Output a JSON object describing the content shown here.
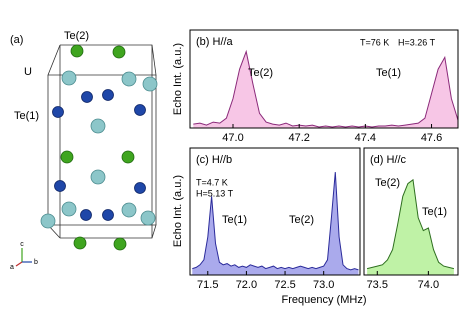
{
  "structure": {
    "label": "(a)",
    "atoms": [
      "Te(2)",
      "U",
      "Te(1)"
    ],
    "axes": [
      "c",
      "a",
      "b"
    ]
  },
  "chart_data": [
    {
      "type": "area",
      "title": "(b) H//a",
      "ylabel": "Echo Int. (a.u.)",
      "notes": [
        "T=76 K",
        "H=3.26 T"
      ],
      "annotations": [
        "Te(2)",
        "Te(1)"
      ],
      "color": "#8b2a7a",
      "fill": "#f7c6e6",
      "x": [
        46.88,
        46.9,
        46.92,
        46.94,
        46.96,
        46.98,
        47.0,
        47.02,
        47.04,
        47.06,
        47.08,
        47.1,
        47.12,
        47.14,
        47.16,
        47.18,
        47.2,
        47.22,
        47.24,
        47.26,
        47.28,
        47.3,
        47.32,
        47.34,
        47.36,
        47.38,
        47.4,
        47.42,
        47.44,
        47.46,
        47.48,
        47.5,
        47.52,
        47.54,
        47.56,
        47.58,
        47.6,
        47.62,
        47.64,
        47.66,
        47.68
      ],
      "values": [
        0.04,
        0.05,
        0.03,
        0.06,
        0.05,
        0.1,
        0.3,
        0.6,
        0.78,
        0.45,
        0.15,
        0.06,
        0.04,
        0.03,
        0.05,
        0.02,
        0.03,
        0.02,
        0.03,
        0.01,
        0.02,
        0.01,
        0.02,
        0.01,
        0.02,
        0.01,
        0.02,
        0.01,
        0.02,
        0.02,
        0.03,
        0.02,
        0.03,
        0.04,
        0.05,
        0.1,
        0.35,
        0.6,
        0.72,
        0.3,
        0.08
      ],
      "xlim": [
        46.87,
        47.68
      ],
      "ylim": [
        0,
        1
      ],
      "xticks": [
        {
          "value": 47.0,
          "label": "47.0"
        },
        47.2,
        47.4,
        47.6
      ]
    },
    {
      "type": "area",
      "title": "(c) H//b",
      "ylabel": "Echo Int. (a.u.)",
      "xlabel": "Frequency (MHz)",
      "notes": [
        "T=4.7 K",
        "H=5.13 T"
      ],
      "annotations": [
        "Te(1)",
        "Te(2)"
      ],
      "color": "#2b2b9b",
      "fill": "#aaaaec",
      "x": [
        71.3,
        71.35,
        71.4,
        71.45,
        71.5,
        71.55,
        71.6,
        71.65,
        71.7,
        71.75,
        71.8,
        71.85,
        71.9,
        71.95,
        72.0,
        72.05,
        72.1,
        72.15,
        72.2,
        72.25,
        72.3,
        72.35,
        72.4,
        72.45,
        72.5,
        72.55,
        72.6,
        72.65,
        72.7,
        72.75,
        72.8,
        72.85,
        72.9,
        72.95,
        73.0,
        73.05,
        73.1,
        73.15,
        73.2,
        73.25,
        73.3,
        73.35,
        73.4,
        73.45
      ],
      "values": [
        0.05,
        0.06,
        0.08,
        0.12,
        0.3,
        0.62,
        0.25,
        0.1,
        0.08,
        0.09,
        0.07,
        0.08,
        0.06,
        0.07,
        0.06,
        0.08,
        0.07,
        0.06,
        0.07,
        0.05,
        0.06,
        0.07,
        0.05,
        0.06,
        0.05,
        0.06,
        0.05,
        0.06,
        0.07,
        0.06,
        0.05,
        0.06,
        0.05,
        0.06,
        0.07,
        0.12,
        0.45,
        0.81,
        0.3,
        0.08,
        0.05,
        0.04,
        0.05,
        0.04
      ],
      "xlim": [
        71.27,
        73.47
      ],
      "ylim": [
        0,
        1
      ],
      "xticks": [
        71.5,
        {
          "value": 72.0,
          "label": "72.0"
        },
        72.5,
        {
          "value": 73.0,
          "label": "73.0"
        }
      ]
    },
    {
      "type": "area",
      "title": "(d) H//c",
      "annotations": [
        "Te(2)",
        "Te(1)"
      ],
      "color": "#2d6e1e",
      "fill": "#bff2a6",
      "x": [
        73.4,
        73.45,
        73.5,
        73.55,
        73.6,
        73.65,
        73.7,
        73.75,
        73.8,
        73.85,
        73.9,
        73.95,
        74.0,
        74.05,
        74.1,
        74.15,
        74.2,
        74.25
      ],
      "values": [
        0.05,
        0.06,
        0.07,
        0.08,
        0.12,
        0.2,
        0.4,
        0.62,
        0.72,
        0.75,
        0.45,
        0.35,
        0.37,
        0.2,
        0.1,
        0.07,
        0.06,
        0.05
      ],
      "xlim": [
        73.37,
        74.29
      ],
      "ylim": [
        0,
        1
      ],
      "xticks": [
        73.5,
        {
          "value": 74.0,
          "label": "74.0"
        }
      ]
    }
  ]
}
